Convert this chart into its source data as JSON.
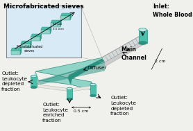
{
  "bg_color": "#f0f0ec",
  "teal_main": "#4bbfaa",
  "teal_dark": "#2a9080",
  "teal_light": "#90d4c8",
  "teal_lighter": "#c0e8e2",
  "teal_trans": "#b0ddd6",
  "gray_line": "#999999",
  "white": "#ffffff",
  "inset_bg": "#d8eaf5",
  "inset_border": "#888888",
  "title": "Microfabricated sieves",
  "label_inlet": "Inlet:\nWhole Blood",
  "label_main_channel": "Main\nChannel",
  "label_diffuser": "Diffuser",
  "label_outlet_left": "Outlet:\nLeukocyte\ndepleted\nfraction",
  "label_outlet_center": "Outlet:\nLeukocyte\nenriched\nfraction",
  "label_outlet_right": "Outlet:\nLeukocyte\ndepleted\nfraction",
  "dim_2cm": "2 cm",
  "dim_05cm": "0.5 cm",
  "fontsize_title": 6.5,
  "fontsize_labels": 5.2,
  "fontsize_bold_labels": 5.8,
  "fontsize_dim": 4.5
}
